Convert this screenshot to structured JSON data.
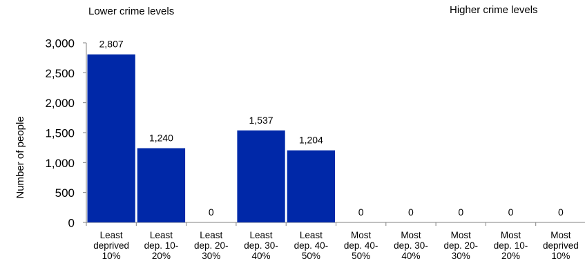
{
  "chart_data": {
    "type": "bar",
    "ylabel": "Number of people",
    "xlabel": "",
    "ylim": [
      0,
      3000
    ],
    "yticks": [
      "0",
      "500",
      "1,000",
      "1,500",
      "2,000",
      "2,500",
      "3,000"
    ],
    "categories": [
      [
        "Least",
        "deprived",
        "10%"
      ],
      [
        "Least",
        "dep. 10-",
        "20%"
      ],
      [
        "Least",
        "dep. 20-",
        "30%"
      ],
      [
        "Least",
        "dep. 30-",
        "40%"
      ],
      [
        "Least",
        "dep. 40-",
        "50%"
      ],
      [
        "Most",
        "dep. 40-",
        "50%"
      ],
      [
        "Most",
        "dep. 30-",
        "40%"
      ],
      [
        "Most",
        "dep. 20-",
        "30%"
      ],
      [
        "Most",
        "dep. 10-",
        "20%"
      ],
      [
        "Most",
        "deprived",
        "10%"
      ]
    ],
    "values": [
      2807,
      1240,
      0,
      1537,
      1204,
      0,
      0,
      0,
      0,
      0
    ],
    "data_labels": [
      "2,807",
      "1,240",
      "0",
      "1,537",
      "1,204",
      "0",
      "0",
      "0",
      "0",
      "0"
    ],
    "bar_color": "#0028A8",
    "annotations": {
      "left": "Lower crime levels",
      "right": "Higher crime levels"
    },
    "grid": false,
    "legend": "none"
  }
}
